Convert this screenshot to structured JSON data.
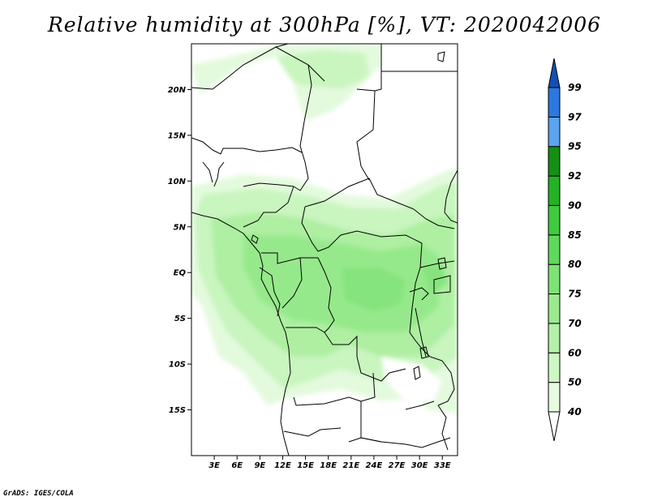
{
  "title": "Relative humidity at 300hPa [%], VT: 2020042006",
  "credit": "GrADS: IGES/COLA",
  "map": {
    "lat_range": [
      -20,
      25
    ],
    "lon_range": [
      0,
      35
    ],
    "lat_ticks": [
      {
        "value": 20,
        "label": "20N"
      },
      {
        "value": 15,
        "label": "15N"
      },
      {
        "value": 10,
        "label": "10N"
      },
      {
        "value": 5,
        "label": "5N"
      },
      {
        "value": 0,
        "label": "EQ"
      },
      {
        "value": -5,
        "label": "5S"
      },
      {
        "value": -10,
        "label": "10S"
      },
      {
        "value": -15,
        "label": "15S"
      }
    ],
    "lon_ticks": [
      {
        "value": 3,
        "label": "3E"
      },
      {
        "value": 6,
        "label": "6E"
      },
      {
        "value": 9,
        "label": "9E"
      },
      {
        "value": 12,
        "label": "12E"
      },
      {
        "value": 15,
        "label": "15E"
      },
      {
        "value": 18,
        "label": "18E"
      },
      {
        "value": 21,
        "label": "21E"
      },
      {
        "value": 24,
        "label": "24E"
      },
      {
        "value": 27,
        "label": "27E"
      },
      {
        "value": 30,
        "label": "30E"
      },
      {
        "value": 33,
        "label": "33E"
      }
    ]
  },
  "colorbar": {
    "levels": [
      "40",
      "50",
      "60",
      "70",
      "75",
      "80",
      "85",
      "90",
      "92",
      "95",
      "97",
      "99"
    ],
    "colors": [
      "#ffffff",
      "#e6fbe0",
      "#cdf7c4",
      "#b3f1a8",
      "#99eb8e",
      "#7ee376",
      "#5fd95a",
      "#3fcb3d",
      "#24b224",
      "#148f14",
      "#5aa4f0",
      "#2d78e0",
      "#1450b4"
    ]
  }
}
